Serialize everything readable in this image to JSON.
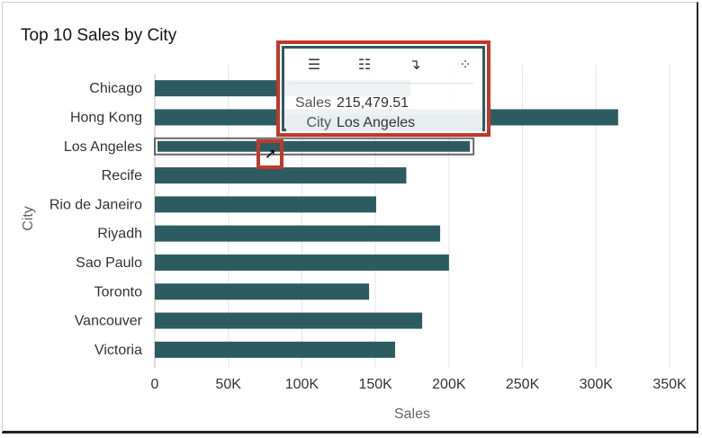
{
  "chart_data": {
    "type": "bar",
    "orientation": "horizontal",
    "title": "Top 10 Sales by City",
    "xlabel": "Sales",
    "ylabel": "City",
    "xlim": [
      0,
      350000
    ],
    "xticks": [
      "0",
      "50K",
      "100K",
      "150K",
      "200K",
      "250K",
      "300K",
      "350K"
    ],
    "categories": [
      "Chicago",
      "Hong Kong",
      "Los Angeles",
      "Recife",
      "Rio de Janeiro",
      "Riyadh",
      "Sao Paulo",
      "Toronto",
      "Vancouver",
      "Victoria"
    ],
    "values": [
      174000,
      315000,
      215479.51,
      171000,
      150500,
      194000,
      200000,
      145700,
      181800,
      163400
    ],
    "color": "#2d5c60",
    "grid": true,
    "highlighted": "Los Angeles"
  },
  "tooltip": {
    "sales_label": "Sales",
    "sales_value": "215,479.51",
    "city_label": "City",
    "city_value": "Los Angeles",
    "tools": [
      "expand-icon",
      "collapse-icon",
      "drill-icon",
      "more-icon"
    ]
  }
}
